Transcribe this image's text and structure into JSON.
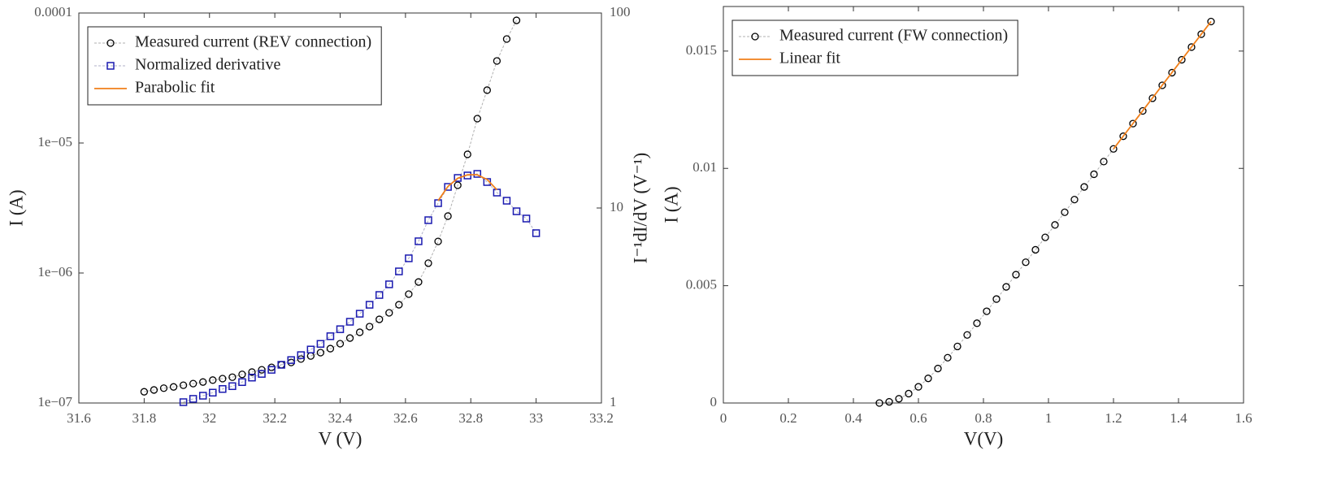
{
  "chart_data": [
    {
      "type": "scatter",
      "xlabel": "V (V)",
      "ylabel": "I (A)",
      "y2label": "I⁻¹dI/dV (V⁻¹)",
      "xlim": [
        31.6,
        33.2
      ],
      "xticks": [
        31.6,
        31.8,
        32,
        32.2,
        32.4,
        32.6,
        32.8,
        33,
        33.2
      ],
      "ylim": [
        1e-07,
        0.0001
      ],
      "yscale": "log",
      "yticks": [
        {
          "value": 1e-07,
          "label": "1e−07"
        },
        {
          "value": 1e-06,
          "label": "1e−06"
        },
        {
          "value": 1e-05,
          "label": "1e−05"
        },
        {
          "value": 0.0001,
          "label": "0.0001"
        }
      ],
      "y2lim": [
        1,
        100
      ],
      "y2scale": "log",
      "y2ticks": [
        1,
        10,
        100
      ],
      "legend": "upper left",
      "series": [
        {
          "name": "Measured current (REV connection)",
          "color": "#000000",
          "line_color": "#b0b0b0",
          "marker": "circle",
          "linestyle": "dashed",
          "x": [
            31.8,
            31.83,
            31.86,
            31.89,
            31.92,
            31.95,
            31.98,
            32.01,
            32.04,
            32.07,
            32.1,
            32.13,
            32.16,
            32.19,
            32.22,
            32.25,
            32.28,
            32.31,
            32.34,
            32.37,
            32.4,
            32.43,
            32.46,
            32.49,
            32.52,
            32.55,
            32.58,
            32.61,
            32.64,
            32.67,
            32.7,
            32.73,
            32.76,
            32.79,
            32.82,
            32.85,
            32.88,
            32.91,
            32.94
          ],
          "values": [
            1.22e-07,
            1.26e-07,
            1.3e-07,
            1.33e-07,
            1.37e-07,
            1.41e-07,
            1.45e-07,
            1.5e-07,
            1.54e-07,
            1.58e-07,
            1.66e-07,
            1.73e-07,
            1.8e-07,
            1.88e-07,
            1.97e-07,
            2.05e-07,
            2.18e-07,
            2.3e-07,
            2.44e-07,
            2.62e-07,
            2.86e-07,
            3.16e-07,
            3.5e-07,
            3.87e-07,
            4.4e-07,
            4.94e-07,
            5.7e-07,
            6.88e-07,
            8.53e-07,
            1.19e-06,
            1.75e-06,
            2.74e-06,
            4.73e-06,
            8.18e-06,
            1.54e-05,
            2.55e-05,
            4.28e-05,
            6.31e-05,
            8.78e-05
          ]
        },
        {
          "name": "Normalized derivative",
          "color": "#1a1ab0",
          "line_color": "#b0b0c8",
          "marker": "square",
          "linestyle": "dashed",
          "axis": "y2",
          "x": [
            31.92,
            31.95,
            31.98,
            32.01,
            32.04,
            32.07,
            32.1,
            32.13,
            32.16,
            32.19,
            32.22,
            32.25,
            32.28,
            32.31,
            32.34,
            32.37,
            32.4,
            32.43,
            32.46,
            32.49,
            32.52,
            32.55,
            32.58,
            32.61,
            32.64,
            32.67,
            32.7,
            32.73,
            32.76,
            32.79,
            32.82,
            32.85,
            32.88,
            32.91,
            32.94,
            32.97,
            33.0
          ],
          "values": [
            1.01,
            1.05,
            1.09,
            1.13,
            1.18,
            1.22,
            1.28,
            1.35,
            1.41,
            1.48,
            1.57,
            1.66,
            1.76,
            1.88,
            2.01,
            2.2,
            2.39,
            2.61,
            2.87,
            3.19,
            3.58,
            4.06,
            4.73,
            5.52,
            6.75,
            8.66,
            10.59,
            12.83,
            14.26,
            14.68,
            14.96,
            13.59,
            12.0,
            10.9,
            9.62,
            8.83,
            7.43
          ]
        },
        {
          "name": "Parabolic fit",
          "color": "#f07f1a",
          "line_color": "#f07f1a",
          "linestyle": "solid",
          "axis": "y2",
          "x": [
            32.7,
            32.73,
            32.76,
            32.79,
            32.82,
            32.85,
            32.88
          ],
          "values": [
            10.9,
            12.9,
            14.2,
            14.8,
            14.8,
            14.0,
            12.4
          ]
        }
      ]
    },
    {
      "type": "scatter",
      "xlabel": "V(V)",
      "ylabel": "I (A)",
      "xlim": [
        0,
        1.6
      ],
      "xticks": [
        0,
        0.2,
        0.4,
        0.6,
        0.8,
        1,
        1.2,
        1.4,
        1.6
      ],
      "ylim": [
        0,
        0.0169
      ],
      "yticks": [
        0,
        0.005,
        0.01,
        0.015
      ],
      "legend": "upper left",
      "series": [
        {
          "name": "Measured current (FW connection)",
          "color": "#000000",
          "line_color": "#b0b0b0",
          "marker": "circle",
          "linestyle": "dashed",
          "x": [
            0.48,
            0.51,
            0.54,
            0.57,
            0.6,
            0.63,
            0.66,
            0.69,
            0.72,
            0.75,
            0.78,
            0.81,
            0.84,
            0.87,
            0.9,
            0.93,
            0.96,
            0.99,
            1.02,
            1.05,
            1.08,
            1.11,
            1.14,
            1.17,
            1.2,
            1.23,
            1.26,
            1.29,
            1.32,
            1.35,
            1.38,
            1.41,
            1.44,
            1.47,
            1.5
          ],
          "values": [
            0,
            5e-05,
            0.00018,
            0.0004,
            0.00069,
            0.00105,
            0.00147,
            0.00193,
            0.00241,
            0.0029,
            0.0034,
            0.00391,
            0.00443,
            0.00495,
            0.00547,
            0.006,
            0.00653,
            0.00706,
            0.00759,
            0.00813,
            0.00867,
            0.00921,
            0.00975,
            0.01029,
            0.01083,
            0.01137,
            0.01191,
            0.01245,
            0.01299,
            0.01354,
            0.01408,
            0.01463,
            0.01517,
            0.01572,
            0.01626
          ]
        },
        {
          "name": "Linear fit",
          "color": "#f07f1a",
          "line_color": "#f07f1a",
          "linestyle": "solid",
          "x": [
            1.2,
            1.5
          ],
          "values": [
            0.01083,
            0.01626
          ]
        }
      ]
    }
  ]
}
